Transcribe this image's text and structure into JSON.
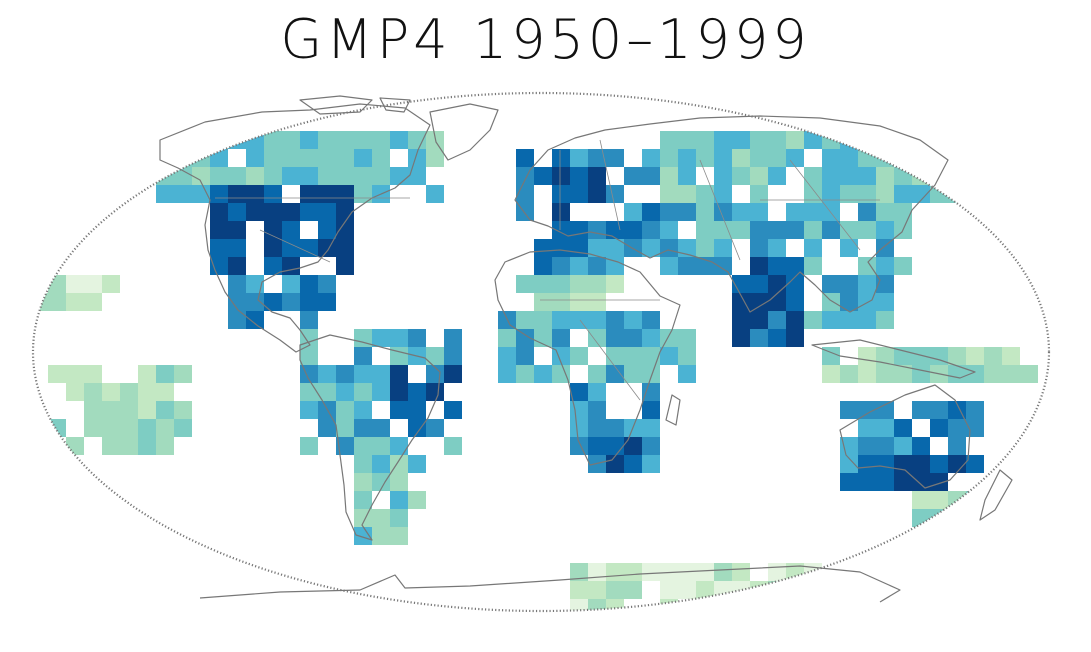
{
  "title": "GMP4 1950–1999",
  "palette": [
    "#e4f4e0",
    "#c3e8c3",
    "#a2dbbe",
    "#7ecdc3",
    "#4bb3d3",
    "#2b8cbe",
    "#0868ac",
    "#084081"
  ],
  "colors": {
    "coast": "#777777",
    "border": "#7a7a7a",
    "background": "#ffffff"
  }
}
